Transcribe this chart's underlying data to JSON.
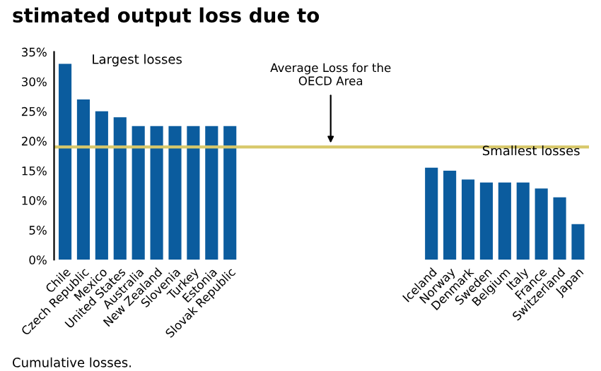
{
  "chart_data": {
    "type": "bar",
    "title": "stimated output loss due to",
    "categories": [
      "Chile",
      "Czech Republic",
      "Mexico",
      "United States",
      "Australia",
      "New Zealand",
      "Slovenia",
      "Turkey",
      "Estonia",
      "Slovak Republic",
      null,
      null,
      null,
      null,
      null,
      null,
      null,
      null,
      null,
      null,
      "Iceland",
      "Norway",
      "Denmark",
      "Sweden",
      "Belgium",
      "Italy",
      "France",
      "Switzerland",
      "Japan"
    ],
    "values": [
      33,
      27,
      25,
      24,
      22.5,
      22.5,
      22.5,
      22.5,
      22.5,
      22.5,
      null,
      null,
      null,
      null,
      null,
      null,
      null,
      null,
      null,
      null,
      15.5,
      15,
      13.5,
      13,
      13,
      13,
      12,
      10.5,
      6
    ],
    "color": "#0b5c9e",
    "ylim": [
      0,
      35
    ],
    "yticks": [
      {
        "value": 0,
        "label": "0%"
      },
      {
        "value": 5,
        "label": "5%"
      },
      {
        "value": 10,
        "label": "10%"
      },
      {
        "value": 15,
        "label": "15%"
      },
      {
        "value": 20,
        "label": "20%"
      },
      {
        "value": 25,
        "label": "25%"
      },
      {
        "value": 30,
        "label": "30%"
      },
      {
        "value": 35,
        "label": "35%"
      }
    ],
    "ref_lines": [
      {
        "axis": "y",
        "value": 19,
        "label": "Average Loss for the\nOECD Area",
        "color": "#d8c86a"
      }
    ],
    "annotations": [
      "Largest losses",
      "Smallest losses",
      "Cumulative losses."
    ],
    "grid": false,
    "legend": false
  }
}
